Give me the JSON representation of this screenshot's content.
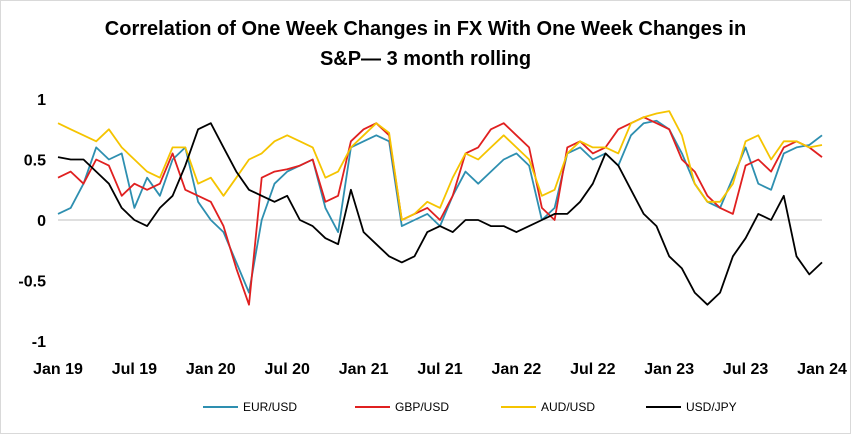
{
  "chart_data": {
    "type": "line",
    "title_line1": "Correlation of One Week Changes in FX With One Week Changes in",
    "title_line2": "S&P— 3 month rolling",
    "xlabel": "",
    "ylabel": "",
    "ylim": [
      -1,
      1
    ],
    "yticks": [
      "1",
      "0.5",
      "0",
      "-0.5",
      "-1"
    ],
    "xticks": [
      "Jan 19",
      "Jul 19",
      "Jan 20",
      "Jul 20",
      "Jan 21",
      "Jul 21",
      "Jan 22",
      "Jul 22",
      "Jan 23",
      "Jul 23",
      "Jan 24"
    ],
    "xlim": [
      0,
      60
    ],
    "grid": false,
    "legend_position": "bottom",
    "x": [
      0,
      1,
      2,
      3,
      4,
      5,
      6,
      7,
      8,
      9,
      10,
      11,
      12,
      13,
      14,
      15,
      16,
      17,
      18,
      19,
      20,
      21,
      22,
      23,
      24,
      25,
      26,
      27,
      28,
      29,
      30,
      31,
      32,
      33,
      34,
      35,
      36,
      37,
      38,
      39,
      40,
      41,
      42,
      43,
      44,
      45,
      46,
      47,
      48,
      49,
      50,
      51,
      52,
      53,
      54,
      55,
      56,
      57,
      58,
      59,
      60
    ],
    "series": [
      {
        "name": "EUR/USD",
        "color": "#2e8fb0",
        "values": [
          0.05,
          0.1,
          0.3,
          0.6,
          0.5,
          0.55,
          0.1,
          0.35,
          0.2,
          0.5,
          0.6,
          0.15,
          0.0,
          -0.1,
          -0.35,
          -0.6,
          0.0,
          0.3,
          0.4,
          0.45,
          0.5,
          0.1,
          -0.1,
          0.6,
          0.65,
          0.7,
          0.65,
          -0.05,
          0.0,
          0.05,
          -0.05,
          0.2,
          0.4,
          0.3,
          0.4,
          0.5,
          0.55,
          0.45,
          0.0,
          0.1,
          0.55,
          0.6,
          0.5,
          0.55,
          0.45,
          0.7,
          0.8,
          0.82,
          0.75,
          0.55,
          0.3,
          0.15,
          0.1,
          0.35,
          0.6,
          0.3,
          0.25,
          0.55,
          0.6,
          0.62,
          0.7
        ]
      },
      {
        "name": "GBP/USD",
        "color": "#e02020",
        "values": [
          0.35,
          0.4,
          0.3,
          0.5,
          0.45,
          0.2,
          0.3,
          0.25,
          0.3,
          0.55,
          0.25,
          0.2,
          0.15,
          -0.05,
          -0.4,
          -0.7,
          0.35,
          0.4,
          0.42,
          0.45,
          0.5,
          0.15,
          0.2,
          0.65,
          0.75,
          0.8,
          0.7,
          0.0,
          0.05,
          0.1,
          0.0,
          0.2,
          0.55,
          0.6,
          0.75,
          0.8,
          0.7,
          0.6,
          0.1,
          0.0,
          0.6,
          0.65,
          0.55,
          0.6,
          0.75,
          0.8,
          0.85,
          0.8,
          0.75,
          0.5,
          0.4,
          0.2,
          0.1,
          0.05,
          0.45,
          0.5,
          0.4,
          0.6,
          0.65,
          0.6,
          0.52
        ]
      },
      {
        "name": "AUD/USD",
        "color": "#f5c400",
        "values": [
          0.8,
          0.75,
          0.7,
          0.65,
          0.75,
          0.6,
          0.5,
          0.4,
          0.35,
          0.6,
          0.6,
          0.3,
          0.35,
          0.2,
          0.35,
          0.5,
          0.55,
          0.65,
          0.7,
          0.65,
          0.6,
          0.35,
          0.4,
          0.6,
          0.7,
          0.8,
          0.72,
          0.0,
          0.05,
          0.15,
          0.1,
          0.35,
          0.55,
          0.5,
          0.6,
          0.7,
          0.6,
          0.5,
          0.2,
          0.25,
          0.55,
          0.65,
          0.6,
          0.6,
          0.55,
          0.8,
          0.85,
          0.88,
          0.9,
          0.7,
          0.3,
          0.15,
          0.15,
          0.3,
          0.65,
          0.7,
          0.5,
          0.65,
          0.65,
          0.6,
          0.62
        ]
      },
      {
        "name": "USD/JPY",
        "color": "#000000",
        "values": [
          0.52,
          0.5,
          0.5,
          0.4,
          0.3,
          0.1,
          0.0,
          -0.05,
          0.1,
          0.2,
          0.45,
          0.75,
          0.8,
          0.6,
          0.4,
          0.25,
          0.2,
          0.15,
          0.2,
          0.0,
          -0.05,
          -0.15,
          -0.2,
          0.25,
          -0.1,
          -0.2,
          -0.3,
          -0.35,
          -0.3,
          -0.1,
          -0.05,
          -0.1,
          0.0,
          0.0,
          -0.05,
          -0.05,
          -0.1,
          -0.05,
          0.0,
          0.05,
          0.05,
          0.15,
          0.3,
          0.55,
          0.45,
          0.25,
          0.05,
          -0.05,
          -0.3,
          -0.4,
          -0.6,
          -0.7,
          -0.6,
          -0.3,
          -0.15,
          0.05,
          0.0,
          0.2,
          -0.3,
          -0.45,
          -0.35
        ]
      }
    ]
  }
}
